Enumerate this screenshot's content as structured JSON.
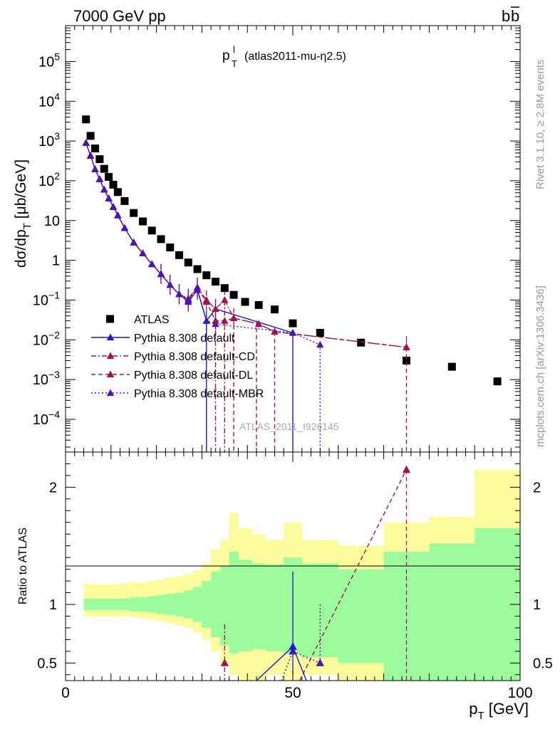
{
  "header": {
    "energy": "7000 GeV pp",
    "process_main": "b",
    "process_bar": "b"
  },
  "side_labels": {
    "rivet": "Rivet 3.1.10, ≥ 2.8M events",
    "mcplots": "mcplots.cern.ch [arXiv:1306.3436]"
  },
  "plot_title": {
    "main": "p",
    "sub": "T",
    "sup": "l",
    "rest": "(atlas2011-mu-η2.5)"
  },
  "watermark": "ATLAS_2011_I926145",
  "colors": {
    "atlas": "#000000",
    "default": "#1a1acc",
    "cd": "#a3124f",
    "dl": "#a3124f",
    "mbr": "#4a14b4",
    "band_inner": "#9cfc9c",
    "band_outer": "#fcfc9c"
  },
  "chart_data": [
    {
      "type": "scatter",
      "panel": "main",
      "ylabel": "dσ/dp_T [μb/GeV]",
      "yscale": "log",
      "xlim": [
        0,
        100
      ],
      "ylim": [
        1.5e-05,
        800000
      ],
      "y_ticks": [
        "10^-4",
        "10^-3",
        "10^-2",
        "10^-1",
        "1",
        "10",
        "10^2",
        "10^3",
        "10^4",
        "10^5"
      ],
      "legend_position": "lower-left",
      "series": [
        {
          "name": "ATLAS",
          "key": "atlas",
          "style": "marker-square",
          "x": [
            4.5,
            5.5,
            6.5,
            7.5,
            8.5,
            9.5,
            10.5,
            11.5,
            13,
            15,
            17,
            19,
            21,
            23,
            25,
            27,
            29,
            31,
            33,
            35,
            37,
            39.5,
            42.5,
            46,
            50,
            56,
            65,
            75,
            85,
            95
          ],
          "y": [
            3500,
            1350,
            650,
            350,
            200,
            125,
            80,
            52,
            31,
            15.5,
            9.5,
            5.6,
            3.4,
            2.1,
            1.35,
            0.88,
            0.6,
            0.42,
            0.29,
            0.2,
            0.135,
            0.09,
            0.075,
            0.058,
            0.026,
            0.015,
            0.0085,
            0.003,
            0.0021,
            0.0009
          ]
        },
        {
          "name": "Pythia 8.308 default",
          "key": "default",
          "style": "solid",
          "x": [
            4.5,
            5.5,
            6.5,
            7.5,
            8.5,
            9.5,
            10.5,
            11.5,
            13,
            15,
            17,
            19,
            21,
            23,
            25,
            27,
            29,
            31,
            33,
            50
          ],
          "y": [
            900,
            430,
            195,
            110,
            60,
            36,
            22,
            13.5,
            6.5,
            2.8,
            1.5,
            0.8,
            0.45,
            0.24,
            0.14,
            0.09,
            0.18,
            0.03,
            0.06,
            0.015
          ]
        },
        {
          "name": "Pythia 8.308 default-CD",
          "key": "cd",
          "style": "dashdot",
          "x": [
            4.5,
            5.5,
            6.5,
            7.5,
            8.5,
            9.5,
            10.5,
            11.5,
            13,
            15,
            17,
            19,
            21,
            23,
            25,
            27,
            29,
            31,
            33,
            35,
            37,
            42.5,
            46,
            75
          ],
          "y": [
            900,
            430,
            195,
            110,
            60,
            36,
            22,
            13.5,
            6.5,
            2.8,
            1.5,
            0.8,
            0.45,
            0.24,
            0.14,
            0.11,
            0.21,
            0.1,
            0.06,
            0.1,
            0.035,
            0.025,
            0.016,
            0.0065
          ]
        },
        {
          "name": "Pythia 8.308 default-DL",
          "key": "dl",
          "style": "dashed",
          "x": [
            4.5,
            5.5,
            6.5,
            7.5,
            8.5,
            9.5,
            10.5,
            11.5,
            13,
            15,
            17,
            19,
            21,
            23,
            25,
            27,
            29,
            31,
            33,
            35,
            37,
            42.5,
            46,
            75
          ],
          "y": [
            900,
            430,
            195,
            110,
            60,
            36,
            22,
            13.5,
            6.5,
            2.8,
            1.5,
            0.8,
            0.45,
            0.24,
            0.14,
            0.1,
            0.2,
            0.09,
            0.03,
            0.03,
            0.035,
            0.025,
            0.016,
            0.0065
          ]
        },
        {
          "name": "Pythia 8.308 default-MBR",
          "key": "mbr",
          "style": "dotted",
          "x": [
            4.5,
            5.5,
            6.5,
            7.5,
            8.5,
            9.5,
            10.5,
            11.5,
            13,
            15,
            17,
            19,
            21,
            23,
            25,
            27,
            29,
            31,
            33,
            50,
            56
          ],
          "y": [
            900,
            430,
            195,
            110,
            60,
            36,
            22,
            13.5,
            6.5,
            2.8,
            1.5,
            0.8,
            0.45,
            0.24,
            0.14,
            0.1,
            0.2,
            0.03,
            0.025,
            0.015,
            0.0075
          ]
        }
      ]
    },
    {
      "type": "line",
      "panel": "ratio",
      "xlabel": "p_T [GeV]",
      "ylabel": "Ratio to ATLAS",
      "xlim": [
        0,
        100
      ],
      "ylim": [
        0.35,
        2.3
      ],
      "x_ticks": [
        "0",
        "50",
        "100"
      ],
      "y_ticks": [
        "0.5",
        "1",
        "2"
      ],
      "bands": {
        "edges": [
          4,
          5,
          6,
          7,
          8,
          9,
          10,
          11,
          12,
          14,
          16,
          18,
          20,
          22,
          24,
          26,
          28,
          30,
          32,
          34,
          36,
          38,
          41,
          44,
          48,
          52,
          60,
          70,
          80,
          90,
          100
        ],
        "inner_up": [
          1.05,
          1.05,
          1.05,
          1.05,
          1.05,
          1.05,
          1.05,
          1.05,
          1.05,
          1.06,
          1.06,
          1.07,
          1.08,
          1.09,
          1.1,
          1.12,
          1.15,
          1.2,
          1.28,
          1.33,
          1.45,
          1.38,
          1.35,
          1.34,
          1.4,
          1.35,
          1.3,
          1.45,
          1.52,
          1.65
        ],
        "inner_dn": [
          0.95,
          0.95,
          0.95,
          0.95,
          0.95,
          0.95,
          0.95,
          0.95,
          0.95,
          0.94,
          0.94,
          0.93,
          0.92,
          0.91,
          0.9,
          0.88,
          0.85,
          0.8,
          0.72,
          0.65,
          0.58,
          0.6,
          0.62,
          0.6,
          0.58,
          0.55,
          0.5,
          0.35,
          0.35,
          0.35
        ],
        "outer_up": [
          1.18,
          1.17,
          1.17,
          1.17,
          1.17,
          1.17,
          1.17,
          1.18,
          1.18,
          1.19,
          1.19,
          1.2,
          1.21,
          1.23,
          1.24,
          1.26,
          1.29,
          1.35,
          1.47,
          1.55,
          1.78,
          1.65,
          1.6,
          1.55,
          1.7,
          1.55,
          1.5,
          1.7,
          1.75,
          2.15
        ],
        "outer_dn": [
          0.9,
          0.9,
          0.9,
          0.9,
          0.9,
          0.9,
          0.9,
          0.9,
          0.9,
          0.89,
          0.88,
          0.87,
          0.86,
          0.84,
          0.82,
          0.8,
          0.76,
          0.7,
          0.6,
          0.5,
          0.4,
          0.35,
          0.35,
          0.4,
          0.35,
          0.4,
          0.35,
          0.35,
          0.35,
          0.35
        ]
      },
      "series": [
        {
          "name": "Pythia 8.308 default",
          "key": "default",
          "style": "solid",
          "x": [
            42,
            50,
            53
          ],
          "y": [
            0.35,
            0.64,
            0.35
          ],
          "markers_x": [
            50
          ],
          "markers_y": [
            0.64
          ]
        },
        {
          "name": "Pythia 8.308 default-CD",
          "key": "cd",
          "style": "dashdot",
          "x": [
            35
          ],
          "y": [
            0.5
          ],
          "markers_x": [
            35
          ],
          "markers_y": [
            0.5
          ]
        },
        {
          "name": "Pythia 8.308 default-DL",
          "key": "dl",
          "style": "dashed",
          "x": [
            51.5,
            75
          ],
          "y": [
            0.35,
            2.15
          ],
          "markers_x": [
            75
          ],
          "markers_y": [
            2.15
          ]
        },
        {
          "name": "Pythia 8.308 default-MBR",
          "key": "mbr",
          "style": "dotted",
          "x": [
            47.5,
            50,
            56
          ],
          "y": [
            0.35,
            0.6,
            0.5
          ],
          "markers_x": [
            50,
            56
          ],
          "markers_y": [
            0.6,
            0.5
          ]
        }
      ]
    }
  ]
}
